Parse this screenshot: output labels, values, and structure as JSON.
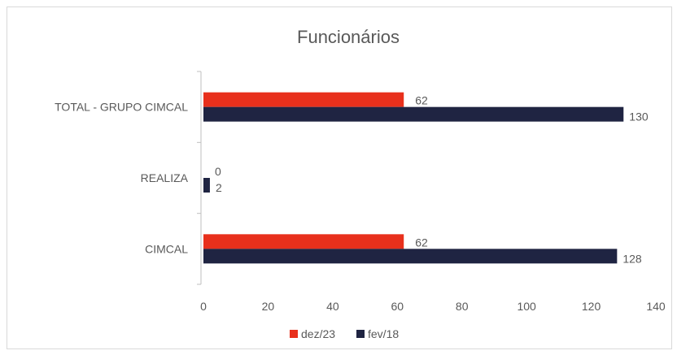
{
  "chart_data": {
    "type": "bar",
    "orientation": "horizontal",
    "title": "Funcionários",
    "categories": [
      "TOTAL - GRUPO CIMCAL",
      "REALIZA",
      "CIMCAL"
    ],
    "series": [
      {
        "name": "dez/23",
        "values": [
          62,
          0,
          62
        ],
        "color": "#e8301c"
      },
      {
        "name": "fev/18",
        "values": [
          130,
          2,
          128
        ],
        "color": "#1f2442"
      }
    ],
    "xlim": [
      0,
      140
    ],
    "xticks": [
      0,
      20,
      40,
      60,
      80,
      100,
      120,
      140
    ],
    "data_labels": true,
    "grid": false,
    "legend_position": "bottom"
  },
  "colors": {
    "axis": "#bfbfbf",
    "text": "#595959",
    "title": "#595959"
  }
}
